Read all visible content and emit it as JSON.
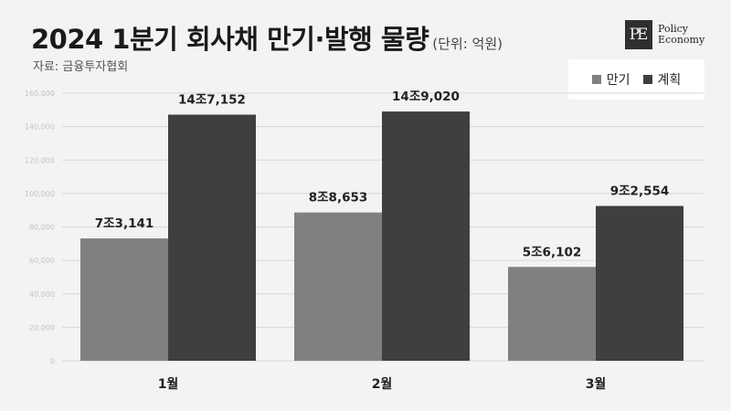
{
  "header": {
    "title": "2024 1분기 회사채 만기·발행 물량",
    "unit": "(단위: 억원)",
    "source": "자료: 금융투자협회"
  },
  "logo": {
    "mark": "PE",
    "line1": "Policy",
    "line2": "Economy"
  },
  "colors": {
    "maturity": "#808080",
    "plan": "#3f3f3f",
    "gridline": "#d9d6d6"
  },
  "chart_data": {
    "type": "bar",
    "categories": [
      "1월",
      "2월",
      "3월"
    ],
    "series": [
      {
        "name": "만기",
        "values": [
          73141,
          88653,
          56102
        ],
        "labels": [
          "7조3,141",
          "8조8,653",
          "5조6,102"
        ]
      },
      {
        "name": "계획",
        "values": [
          147152,
          149020,
          92554
        ],
        "labels": [
          "14조7,152",
          "14조9,020",
          "9조2,554"
        ]
      }
    ],
    "ylim": [
      0,
      160000
    ],
    "yticks": [
      0,
      20000,
      40000,
      60000,
      80000,
      100000,
      120000,
      140000,
      160000
    ],
    "ytick_labels": [
      "0",
      "20,000",
      "40,000",
      "60,000",
      "80,000",
      "100,000",
      "120,000",
      "140,000",
      "160,000"
    ],
    "grid": true,
    "legend_position": "top-right"
  }
}
